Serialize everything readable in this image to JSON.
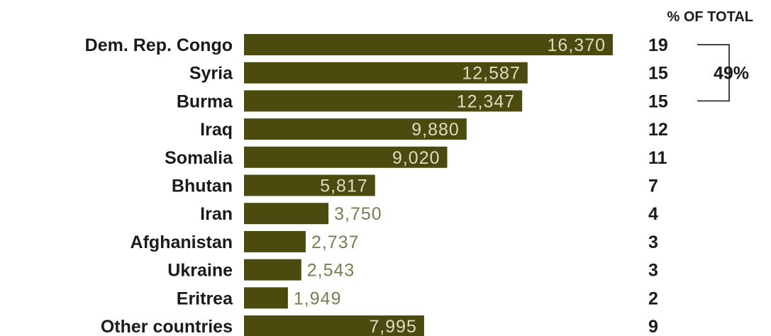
{
  "chart_data": {
    "type": "bar",
    "orientation": "horizontal",
    "categories": [
      "Dem. Rep. Congo",
      "Syria",
      "Burma",
      "Iraq",
      "Somalia",
      "Bhutan",
      "Iran",
      "Afghanistan",
      "Ukraine",
      "Eritrea",
      "Other countries"
    ],
    "values": [
      16370,
      12587,
      12347,
      9880,
      9020,
      5817,
      3750,
      2737,
      2543,
      1949,
      7995
    ],
    "value_labels": [
      "16,370",
      "12,587",
      "12,347",
      "9,880",
      "9,020",
      "5,817",
      "3,750",
      "2,737",
      "2,543",
      "1,949",
      "7,995"
    ],
    "percent_header": "% OF TOTAL",
    "percents": [
      "19",
      "15",
      "15",
      "12",
      "11",
      "7",
      "4",
      "3",
      "3",
      "2",
      "9"
    ],
    "bracket": {
      "label": "49%",
      "from_index": 0,
      "to_index": 2
    },
    "bar_color": "#4b4b10",
    "value_inside_color": "#dcdcc4",
    "value_outside_color": "#7c7c52"
  }
}
